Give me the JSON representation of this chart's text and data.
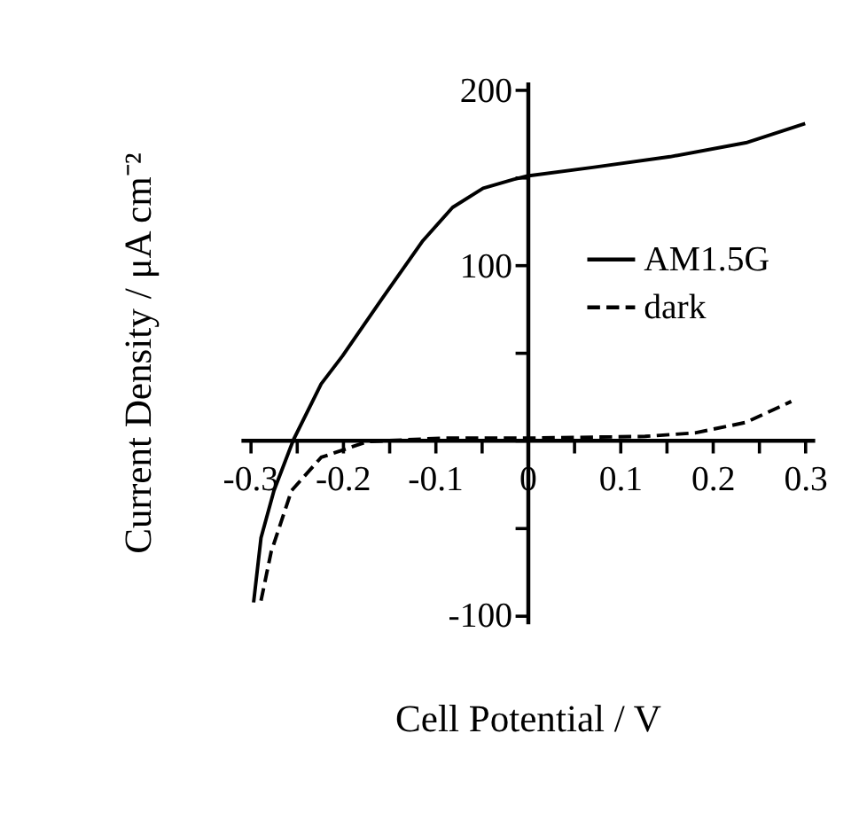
{
  "chart_data": {
    "type": "line",
    "xlabel": "Cell Potential / V",
    "ylabel": "Current Density / μA cm⁻²",
    "xlim": [
      -0.31,
      0.31
    ],
    "ylim": [
      -105,
      205
    ],
    "xticks": [
      -0.3,
      {
        "value": -0.25,
        "label": null
      },
      -0.2,
      {
        "value": -0.15,
        "label": null
      },
      -0.1,
      {
        "value": -0.05,
        "label": null
      },
      0,
      {
        "value": 0.05,
        "label": null
      },
      0.1,
      {
        "value": 0.15,
        "label": null
      },
      0.2,
      {
        "value": 0.25,
        "label": null
      },
      0.3
    ],
    "yticks": [
      -100,
      {
        "value": -50,
        "label": null
      },
      {
        "value": 0,
        "label": null
      },
      {
        "value": 50,
        "label": null
      },
      100,
      {
        "value": 150,
        "label": null
      },
      200
    ],
    "grid": false,
    "legend": "right",
    "marker": "none",
    "series": [
      {
        "name": "AM1.5G",
        "color": "#000000",
        "line_style": "solid",
        "x": [
          -0.296,
          -0.288,
          -0.274,
          -0.253,
          -0.223,
          -0.2,
          -0.157,
          -0.113,
          -0.081,
          -0.048,
          -0.015,
          0,
          0.072,
          0.154,
          0.236,
          0.3
        ],
        "values": [
          -93,
          -56,
          -29,
          0,
          32,
          48,
          81,
          114,
          133,
          144,
          149,
          151,
          156,
          162,
          170,
          181
        ]
      },
      {
        "name": "dark",
        "color": "#000000",
        "line_style": "dashed",
        "x": [
          -0.288,
          -0.277,
          -0.255,
          -0.223,
          -0.173,
          -0.092,
          0,
          0.127,
          0.181,
          0.236,
          0.285
        ],
        "values": [
          -92,
          -64,
          -29,
          -10,
          -1,
          1,
          1,
          2,
          4,
          10,
          22
        ]
      }
    ]
  }
}
